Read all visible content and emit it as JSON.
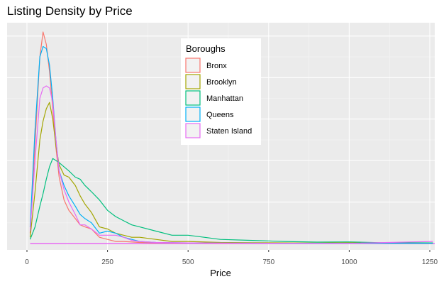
{
  "chart_data": {
    "type": "line",
    "title": "Listing Density by Price",
    "xlabel": "Price",
    "ylabel": "",
    "xlim": [
      0,
      1260
    ],
    "ylim": [
      0,
      0.0103
    ],
    "x_ticks": [
      0,
      250,
      500,
      750,
      1000,
      1250
    ],
    "x_tick_labels": [
      "0",
      "250",
      "500",
      "750",
      "1000",
      "1250"
    ],
    "y_gridlines": [
      0.002,
      0.004,
      0.006,
      0.008,
      0.01
    ],
    "grid": true,
    "legend_title": "Boroughs",
    "legend_position": "top-center",
    "series": [
      {
        "name": "Bronx",
        "color": "#F8766D",
        "x": [
          10,
          25,
          40,
          50,
          60,
          70,
          80,
          90,
          100,
          115,
          130,
          150,
          165,
          180,
          200,
          225,
          250,
          275,
          300,
          350,
          400,
          500,
          600,
          800,
          1000,
          1260
        ],
        "y": [
          0.0005,
          0.0048,
          0.009,
          0.0102,
          0.0096,
          0.0083,
          0.0065,
          0.0046,
          0.0032,
          0.0021,
          0.0016,
          0.0012,
          0.0009,
          0.0008,
          0.0007,
          0.0003,
          0.0002,
          0.0001,
          0.0001,
          5e-05,
          3e-05,
          2e-05,
          1e-05,
          1e-05,
          1e-05,
          1e-05
        ]
      },
      {
        "name": "Brooklyn",
        "color": "#A3A500",
        "x": [
          10,
          25,
          40,
          50,
          60,
          70,
          80,
          90,
          100,
          115,
          130,
          150,
          165,
          180,
          200,
          225,
          250,
          275,
          300,
          325,
          350,
          400,
          450,
          500,
          600,
          700,
          800,
          900,
          1000,
          1100,
          1260
        ],
        "y": [
          0.0003,
          0.0025,
          0.005,
          0.0059,
          0.0065,
          0.0068,
          0.006,
          0.0047,
          0.0038,
          0.0033,
          0.0032,
          0.0028,
          0.0023,
          0.0019,
          0.0015,
          0.0008,
          0.0007,
          0.0005,
          0.0004,
          0.0003,
          0.0003,
          0.0002,
          0.0001,
          0.0001,
          5e-05,
          4e-05,
          3e-05,
          2e-05,
          4e-05,
          2e-05,
          1e-05
        ]
      },
      {
        "name": "Manhattan",
        "color": "#00BF7D",
        "x": [
          10,
          25,
          40,
          50,
          60,
          70,
          80,
          90,
          100,
          115,
          130,
          150,
          165,
          180,
          200,
          225,
          250,
          275,
          300,
          325,
          350,
          400,
          450,
          500,
          550,
          600,
          700,
          800,
          900,
          1000,
          1100,
          1260
        ],
        "y": [
          0.0002,
          0.0008,
          0.0018,
          0.0024,
          0.0031,
          0.0037,
          0.0041,
          0.004,
          0.0039,
          0.0037,
          0.0035,
          0.0032,
          0.0031,
          0.0028,
          0.0025,
          0.0021,
          0.0016,
          0.0013,
          0.0011,
          0.0009,
          0.0008,
          0.0006,
          0.0004,
          0.0004,
          0.0003,
          0.0002,
          0.00015,
          0.0001,
          7e-05,
          8e-05,
          4e-05,
          3e-05
        ]
      },
      {
        "name": "Queens",
        "color": "#00B0F6",
        "x": [
          10,
          25,
          40,
          50,
          60,
          70,
          80,
          90,
          100,
          115,
          130,
          150,
          165,
          180,
          200,
          225,
          250,
          275,
          300,
          350,
          400,
          500,
          600,
          800,
          1000,
          1260
        ],
        "y": [
          0.0008,
          0.0055,
          0.009,
          0.0095,
          0.0094,
          0.0086,
          0.007,
          0.005,
          0.0035,
          0.0028,
          0.0023,
          0.0018,
          0.0014,
          0.0012,
          0.001,
          0.0005,
          0.0006,
          0.0005,
          0.0003,
          0.0001,
          5e-05,
          3e-05,
          2e-05,
          1e-05,
          1e-05,
          1e-05
        ]
      },
      {
        "name": "Staten Island",
        "color": "#E76BF3",
        "x": [
          10,
          25,
          40,
          50,
          60,
          70,
          80,
          90,
          100,
          115,
          130,
          150,
          165,
          180,
          200,
          225,
          250,
          275,
          300,
          325,
          350,
          400,
          500,
          600,
          800,
          1000,
          1260
        ],
        "y": [
          0.0006,
          0.004,
          0.007,
          0.0075,
          0.0076,
          0.0075,
          0.0068,
          0.005,
          0.0035,
          0.0026,
          0.002,
          0.0014,
          0.0009,
          0.0009,
          0.0007,
          0.0004,
          0.0004,
          0.0004,
          0.0003,
          0.00015,
          0.0001,
          5e-05,
          3e-05,
          2e-05,
          1e-05,
          1e-05,
          0.0001
        ]
      }
    ]
  }
}
